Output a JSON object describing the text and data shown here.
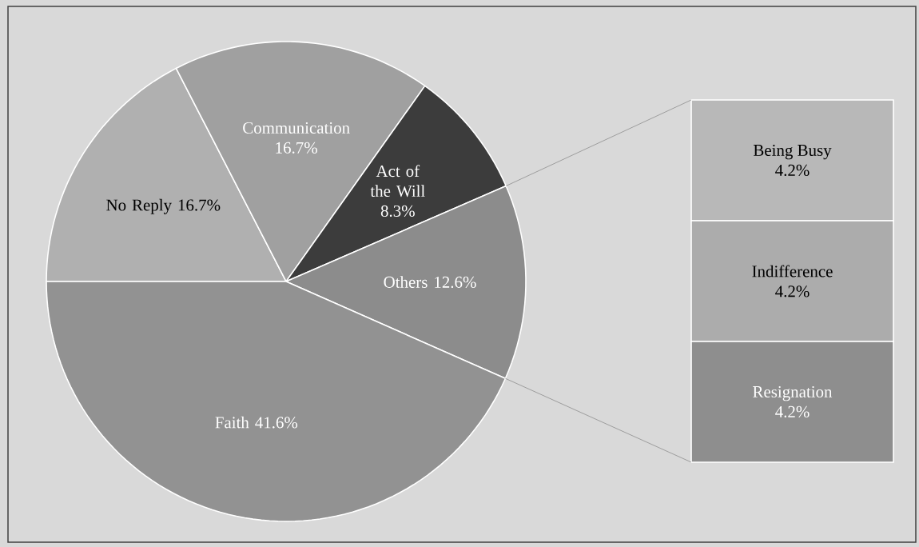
{
  "chart_data": [
    {
      "type": "pie",
      "categories": [
        "No Reply",
        "Communication",
        "Act of the Will",
        "Others",
        "Faith"
      ],
      "values": [
        16.7,
        16.7,
        8.3,
        12.6,
        41.6
      ],
      "value_labels": [
        "16.7%",
        "16.7%",
        "8.3%",
        "12.6%",
        "41.6%"
      ],
      "colors": [
        "#b0b0b0",
        "#a0a0a0",
        "#3c3c3c",
        "#8c8c8c",
        "#929292"
      ]
    },
    {
      "type": "bar",
      "stacked": true,
      "categories": [
        null
      ],
      "series": [
        {
          "name": "Resignation",
          "color": "#8e8e8e",
          "values": [
            4.2
          ],
          "value_labels": [
            "4.2%"
          ]
        },
        {
          "name": "Indifference",
          "color": "#acacac",
          "values": [
            4.2
          ],
          "value_labels": [
            "4.2%"
          ]
        },
        {
          "name": "Being Busy",
          "color": "#b8b8b8",
          "values": [
            4.2
          ],
          "value_labels": [
            "4.2%"
          ]
        }
      ]
    }
  ]
}
